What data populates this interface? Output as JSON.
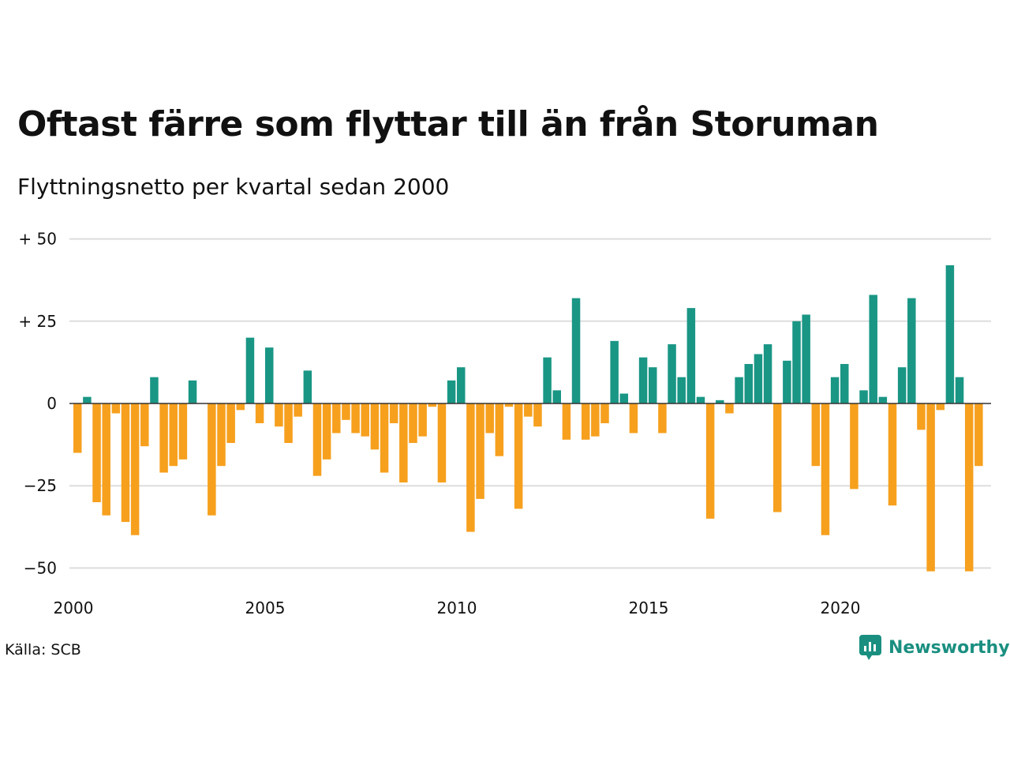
{
  "header": {
    "title": "Oftast färre som flyttar till än från Storuman",
    "subtitle": "Flyttningsnetto per kvartal sedan 2000"
  },
  "footer": {
    "source": "Källa: SCB",
    "brand": "Newsworthy",
    "brand_icon": "chart-bubble-icon"
  },
  "colors": {
    "positive": "#1a9685",
    "negative": "#f6a01e",
    "grid": "#dddddd",
    "zero_line": "#333333",
    "brand": "#1a8f80"
  },
  "chart_data": {
    "type": "bar",
    "title": "Oftast färre som flyttar till än från Storuman",
    "subtitle": "Flyttningsnetto per kvartal sedan 2000",
    "xlabel": "",
    "ylabel": "",
    "ylim": [
      -55,
      55
    ],
    "yticks": [
      50,
      25,
      0,
      -25,
      -50
    ],
    "ytick_labels": [
      "+ 50",
      "+ 25",
      "0",
      "−25",
      "−50"
    ],
    "xticks": [
      2000,
      2005,
      2010,
      2015,
      2020
    ],
    "xtick_labels": [
      "2000",
      "2005",
      "2010",
      "2015",
      "2020"
    ],
    "grid": true,
    "start": "2000-Q1",
    "values": [
      -15,
      2,
      -30,
      -34,
      -3,
      -36,
      -40,
      -13,
      8,
      -21,
      -19,
      -17,
      7,
      0,
      -34,
      -19,
      -12,
      -2,
      20,
      -6,
      17,
      -7,
      -12,
      -4,
      10,
      -22,
      -17,
      -9,
      -5,
      -9,
      -10,
      -14,
      -21,
      -6,
      -24,
      -12,
      -10,
      -1,
      -24,
      7,
      11,
      -39,
      -29,
      -9,
      -16,
      -1,
      -32,
      -4,
      -7,
      14,
      4,
      -11,
      32,
      -11,
      -10,
      -6,
      19,
      3,
      -9,
      14,
      11,
      -9,
      18,
      8,
      29,
      2,
      -35,
      1,
      -3,
      8,
      12,
      15,
      18,
      -33,
      13,
      25,
      27,
      -19,
      -40,
      8,
      12,
      -26,
      4,
      33,
      2,
      -31,
      11,
      32,
      -8,
      -51,
      -2,
      42,
      8,
      -51,
      -19
    ]
  }
}
